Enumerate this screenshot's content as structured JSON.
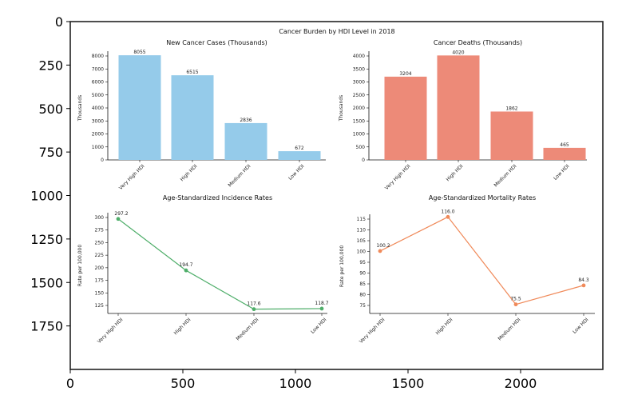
{
  "chart_data": {
    "type": "image-display",
    "outer_axes": {
      "xticks": [
        0,
        500,
        1000,
        1500,
        2000
      ],
      "yticks": [
        0,
        250,
        500,
        750,
        1000,
        1250,
        1500,
        1750
      ],
      "y_inverted": true
    },
    "suptitle": "Cancer Burden by HDI Level in 2018",
    "panels": [
      {
        "type": "bar",
        "title": "New Cancer Cases (Thousands)",
        "ylabel": "Thousands",
        "categories": [
          "Very High HDI",
          "High HDI",
          "Medium HDI",
          "Low HDI"
        ],
        "values": [
          8055,
          6515,
          2836,
          672
        ],
        "labels": [
          "8055",
          "6515",
          "2836",
          "672"
        ],
        "yticks": [
          0,
          1000,
          2000,
          3000,
          4000,
          5000,
          6000,
          7000,
          8000
        ],
        "color": "#95cbea"
      },
      {
        "type": "bar",
        "title": "Cancer Deaths (Thousands)",
        "ylabel": "Thousands",
        "categories": [
          "Very High HDI",
          "High HDI",
          "Medium HDI",
          "Low HDI"
        ],
        "values": [
          3204,
          4020,
          1862,
          465
        ],
        "labels": [
          "3204",
          "4020",
          "1862",
          "465"
        ],
        "yticks": [
          0,
          500,
          1000,
          1500,
          2000,
          2500,
          3000,
          3500,
          4000
        ],
        "color": "#ed8a78"
      },
      {
        "type": "line",
        "title": "Age-Standardized Incidence Rates",
        "ylabel": "Rate per 100,000",
        "categories": [
          "Very High HDI",
          "High HDI",
          "Medium HDI",
          "Low HDI"
        ],
        "values": [
          297.2,
          194.7,
          117.6,
          118.7
        ],
        "labels": [
          "297.2",
          "194.7",
          "117.6",
          "118.7"
        ],
        "yticks": [
          125,
          150,
          175,
          200,
          225,
          250,
          275,
          300
        ],
        "color": "#4fae6a"
      },
      {
        "type": "line",
        "title": "Age-Standardized Mortality Rates",
        "ylabel": "Rate per 100,000",
        "categories": [
          "Very High HDI",
          "High HDI",
          "Medium HDI",
          "Low HDI"
        ],
        "values": [
          100.2,
          116.0,
          75.5,
          84.3
        ],
        "labels": [
          "100.2",
          "116.0",
          "75.5",
          "84.3"
        ],
        "yticks": [
          75,
          80,
          85,
          90,
          95,
          100,
          105,
          110,
          115
        ],
        "color": "#f08a5a"
      }
    ]
  }
}
